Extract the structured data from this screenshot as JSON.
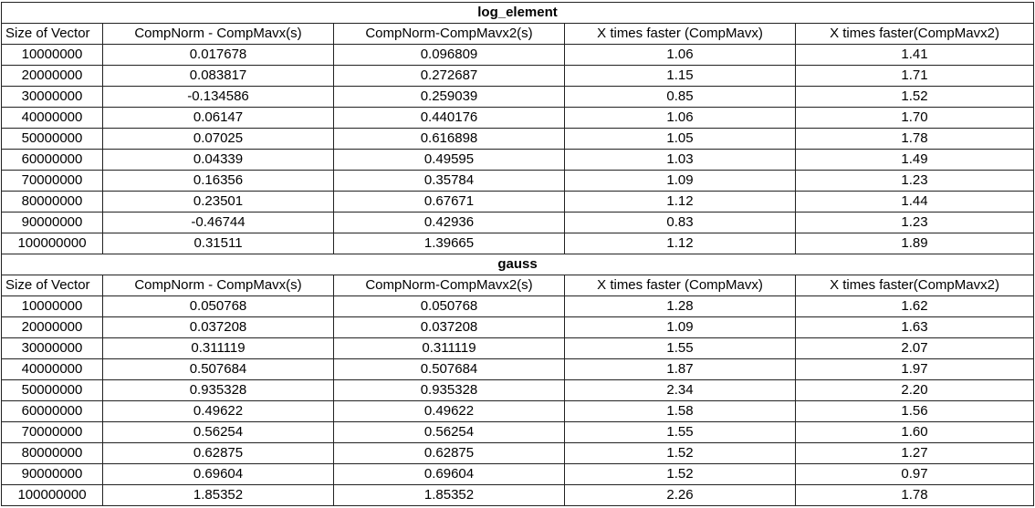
{
  "header_cells": [
    "Size of Vector",
    "CompNorm - CompMavx(s)",
    "CompNorm-CompMavx2(s)",
    "X times faster (CompMavx)",
    "X times faster(CompMavx2)"
  ],
  "sections": [
    {
      "title": "log_element",
      "rows": [
        [
          "10000000",
          "0.017678",
          "0.096809",
          "1.06",
          "1.41"
        ],
        [
          "20000000",
          "0.083817",
          "0.272687",
          "1.15",
          "1.71"
        ],
        [
          "30000000",
          "-0.134586",
          "0.259039",
          "0.85",
          "1.52"
        ],
        [
          "40000000",
          "0.06147",
          "0.440176",
          "1.06",
          "1.70"
        ],
        [
          "50000000",
          "0.07025",
          "0.616898",
          "1.05",
          "1.78"
        ],
        [
          "60000000",
          "0.04339",
          "0.49595",
          "1.03",
          "1.49"
        ],
        [
          "70000000",
          "0.16356",
          "0.35784",
          "1.09",
          "1.23"
        ],
        [
          "80000000",
          "0.23501",
          "0.67671",
          "1.12",
          "1.44"
        ],
        [
          "90000000",
          "-0.46744",
          "0.42936",
          "0.83",
          "1.23"
        ],
        [
          "100000000",
          "0.31511",
          "1.39665",
          "1.12",
          "1.89"
        ]
      ]
    },
    {
      "title": "gauss",
      "rows": [
        [
          "10000000",
          "0.050768",
          "0.050768",
          "1.28",
          "1.62"
        ],
        [
          "20000000",
          "0.037208",
          "0.037208",
          "1.09",
          "1.63"
        ],
        [
          "30000000",
          "0.311119",
          "0.311119",
          "1.55",
          "2.07"
        ],
        [
          "40000000",
          "0.507684",
          "0.507684",
          "1.87",
          "1.97"
        ],
        [
          "50000000",
          "0.935328",
          "0.935328",
          "2.34",
          "2.20"
        ],
        [
          "60000000",
          "0.49622",
          "0.49622",
          "1.58",
          "1.56"
        ],
        [
          "70000000",
          "0.56254",
          "0.56254",
          "1.55",
          "1.60"
        ],
        [
          "80000000",
          "0.62875",
          "0.62875",
          "1.52",
          "1.27"
        ],
        [
          "90000000",
          "0.69604",
          "0.69604",
          "1.52",
          "0.97"
        ],
        [
          "100000000",
          "1.85352",
          "1.85352",
          "2.26",
          "1.78"
        ]
      ]
    }
  ]
}
